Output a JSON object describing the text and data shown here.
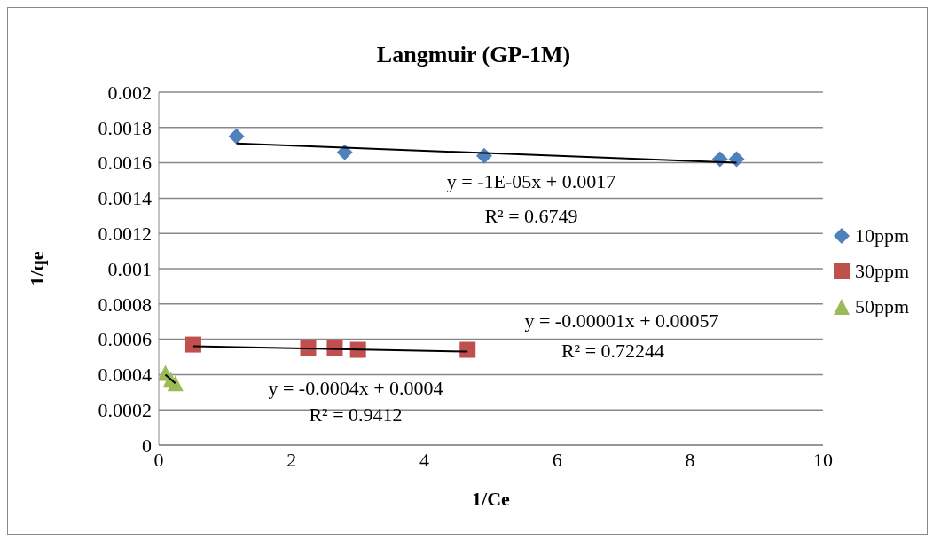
{
  "chart_data": {
    "type": "scatter",
    "title": "Langmuir (GP-1M)",
    "xlabel": "1/Ce",
    "ylabel": "1/qe",
    "xlim": [
      0,
      10
    ],
    "xticks": [
      0,
      2,
      4,
      6,
      8,
      10
    ],
    "ylim": [
      0,
      0.002
    ],
    "yticks": [
      0,
      0.0002,
      0.0004,
      0.0006,
      0.0008,
      0.001,
      0.0012,
      0.0014,
      0.0016,
      0.0018,
      0.002
    ],
    "grid": "y",
    "legend": "right",
    "series": [
      {
        "name": "10ppm",
        "color": "#4f81bd",
        "marker": "diamond",
        "x": [
          1.17,
          2.8,
          4.9,
          8.45,
          8.7
        ],
        "values": [
          0.00175,
          0.00166,
          0.00164,
          0.00162,
          0.00162
        ]
      },
      {
        "name": "30ppm",
        "color": "#c0504d",
        "marker": "square",
        "x": [
          0.52,
          2.25,
          2.65,
          3.0,
          4.65
        ],
        "values": [
          0.00057,
          0.00055,
          0.00055,
          0.00054,
          0.00054
        ]
      },
      {
        "name": "50ppm",
        "color": "#9bbb59",
        "marker": "triangle",
        "x": [
          0.1,
          0.18,
          0.25
        ],
        "values": [
          0.00041,
          0.00037,
          0.00035
        ]
      },
      {
        "type": "line",
        "color": "#000000",
        "marker": "none",
        "x": [
          1.17,
          8.7
        ],
        "values": [
          0.00171,
          0.0016
        ]
      },
      {
        "type": "line",
        "color": "#000000",
        "marker": "none",
        "x": [
          0.52,
          4.65
        ],
        "values": [
          0.00056,
          0.00053
        ]
      },
      {
        "type": "line",
        "color": "#000000",
        "marker": "none",
        "x": [
          0.1,
          0.25
        ],
        "values": [
          0.0004,
          0.00035
        ]
      }
    ],
    "annotations": [
      "y = -1E-05x + 0.0017",
      "R² = 0.6749",
      "y = -0.00001x + 0.00057",
      "R² = 0.72244",
      "y = -0.0004x + 0.0004",
      "R² = 0.9412"
    ]
  }
}
